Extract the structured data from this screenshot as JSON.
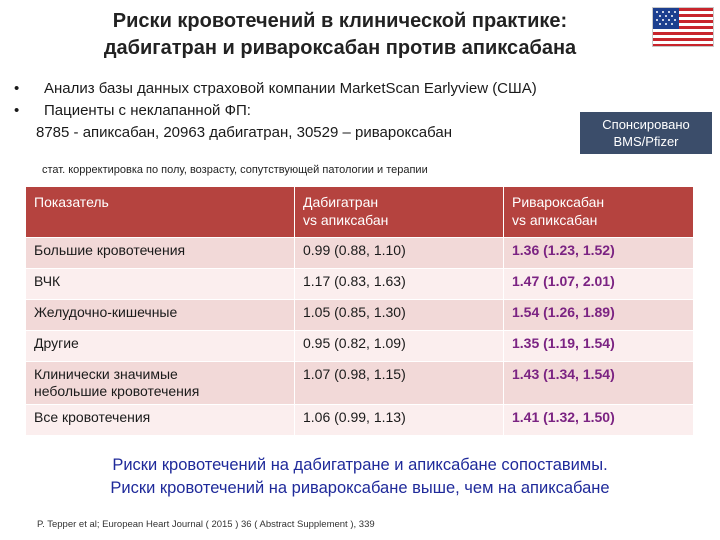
{
  "title": {
    "line1": "Риски кровотечений в клинической практике:",
    "line2": "дабигатран и ривароксабан против апиксабана"
  },
  "flag_icon": "us-flag-icon",
  "bullets": {
    "item1": "Анализ базы данных страховой компании MarketScan Earlyview (США)",
    "item2": "Пациенты с неклапанной ФП:",
    "item2_sub": "8785 - апиксабан, 20963 дабигатран, 30529 – ривароксабан"
  },
  "sponsor": {
    "line1": "Спонсировано",
    "line2": "BMS/Pfizer"
  },
  "note": "стат. корректировка по полу, возрасту, сопутствующей патологии и терапии",
  "table": {
    "headers": {
      "col1": "Показатель",
      "col2_line1": "Дабигатран",
      "col2_line2": "vs апиксабан",
      "col3_line1": "Ривароксабан",
      "col3_line2": "vs апиксабан"
    },
    "rows": [
      {
        "indicator": "Большие кровотечения",
        "dabigatran": "0.99 (0.88, 1.10)",
        "rivaroxaban": "1.36 (1.23, 1.52)"
      },
      {
        "indicator": "ВЧК",
        "dabigatran": "1.17 (0.83, 1.63)",
        "rivaroxaban": "1.47 (1.07, 2.01)"
      },
      {
        "indicator": "Желудочно-кишечные",
        "dabigatran": "1.05 (0.85, 1.30)",
        "rivaroxaban": "1.54 (1.26, 1.89)"
      },
      {
        "indicator": "Другие",
        "dabigatran": "0.95 (0.82, 1.09)",
        "rivaroxaban": "1.35 (1.19, 1.54)"
      },
      {
        "indicator_line1": "Клинически значимые",
        "indicator_line2": "небольшие кровотечения",
        "dabigatran": "1.07 (0.98, 1.15)",
        "rivaroxaban": "1.43 (1.34, 1.54)"
      },
      {
        "indicator": "Все кровотечения",
        "dabigatran": "1.06 (0.99, 1.13)",
        "rivaroxaban": "1.41 (1.32, 1.50)"
      }
    ]
  },
  "conclusion": {
    "line1": "Риски кровотечений на дабигатране и апиксабане сопоставимы.",
    "line2": "Риски кровотечений на ривароксабане выше, чем на апиксабане"
  },
  "reference": "P. Tepper et al; European Heart Journal ( 2015 ) 36 ( Abstract Supplement ), 339",
  "colors": {
    "header_bg": "#b5433f",
    "rivaroxaban_text": "#7b2382",
    "conclusion_text": "#1f2a9a",
    "sponsor_bg": "#3b4d6a"
  }
}
